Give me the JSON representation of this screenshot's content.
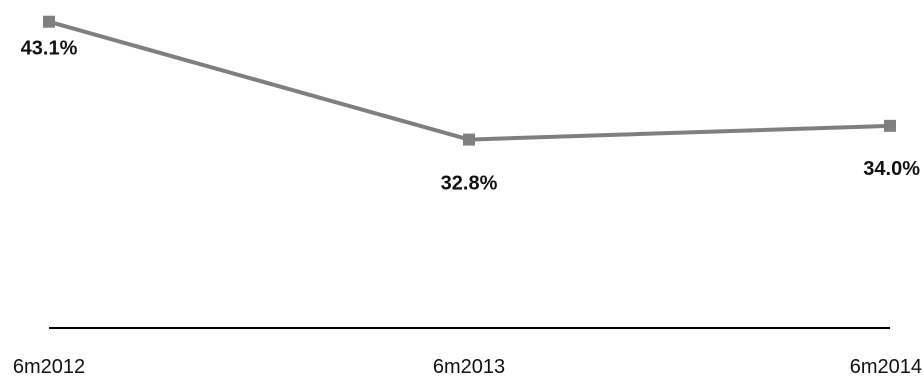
{
  "chart_data": {
    "type": "line",
    "categories": [
      "6m2012",
      "6m2013",
      "6m2014"
    ],
    "series": [
      {
        "values": [
          43.1,
          32.8,
          34.0
        ],
        "data_labels": [
          "43.1%",
          "32.8%",
          "34.0%"
        ],
        "color": "#7f7f7f",
        "marker": "square"
      }
    ],
    "title": "",
    "xlabel": "",
    "ylabel": "",
    "ylim": [
      20,
      45
    ],
    "grid": false,
    "legend": "none",
    "axis_color": "#000000"
  }
}
